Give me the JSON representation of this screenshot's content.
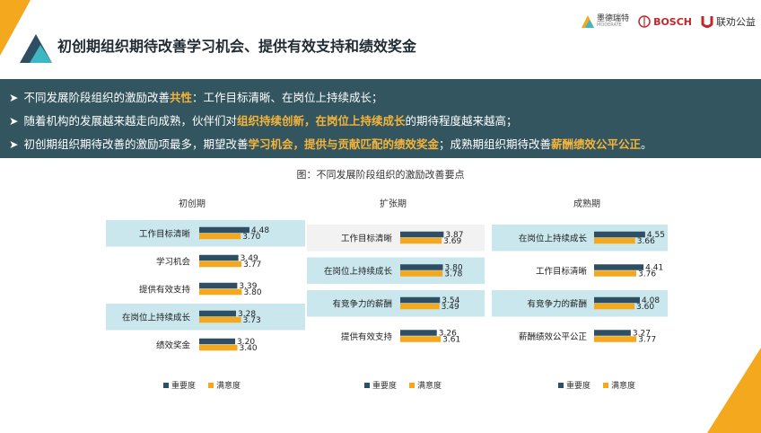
{
  "header": {
    "title": "初创期组织期待改善学习机会、提供有效支持和绩效奖金",
    "logos": [
      {
        "name": "墨德瑞特",
        "sub": "MODERATE"
      },
      {
        "name": "BOSCH"
      },
      {
        "name": "联劝公益"
      }
    ]
  },
  "banner": {
    "lines": [
      [
        {
          "t": "不同发展阶段组织的激励改善"
        },
        {
          "t": "共性",
          "hl": true
        },
        {
          "t": "：工作目标清晰、在岗位上持续成长；"
        }
      ],
      [
        {
          "t": "随着机构的发展越来越走向成熟，伙伴们对"
        },
        {
          "t": "组织持续创新，在岗位上持续成长",
          "hl": true
        },
        {
          "t": "的期待程度越来越高；"
        }
      ],
      [
        {
          "t": "初创期组织期待改善的激励项最多，期望改善"
        },
        {
          "t": "学习机会，提供与贡献匹配的绩效奖金",
          "hl": true
        },
        {
          "t": "；成熟期组织期待改善"
        },
        {
          "t": "薪酬绩效公平公正",
          "hl": true
        },
        {
          "t": "。"
        }
      ]
    ]
  },
  "figure_caption": "图：不同发展阶段组织的激励改善要点",
  "colors": {
    "importance": "#2e4f63",
    "satisfaction": "#f4a81d",
    "highlight": "#bfe3ea",
    "banner": "#33555f",
    "accent": "#f4a81d"
  },
  "chart_data": [
    {
      "type": "bar",
      "orientation": "horizontal",
      "title": "初创期",
      "categories": [
        "工作目标清晰",
        "学习机会",
        "提供有效支持",
        "在岗位上持续成长",
        "绩效奖金"
      ],
      "series": [
        {
          "name": "重要度",
          "values": [
            4.48,
            3.49,
            3.39,
            3.28,
            3.2
          ]
        },
        {
          "name": "满意度",
          "values": [
            3.7,
            3.77,
            3.8,
            3.73,
            3.4
          ]
        }
      ],
      "legend_position": "bottom"
    },
    {
      "type": "bar",
      "orientation": "horizontal",
      "title": "扩张期",
      "categories": [
        "工作目标清晰",
        "在岗位上持续成长",
        "有竞争力的薪酬",
        "提供有效支持"
      ],
      "series": [
        {
          "name": "重要度",
          "values": [
            3.87,
            3.8,
            3.54,
            3.26
          ]
        },
        {
          "name": "满意度",
          "values": [
            3.69,
            3.78,
            3.49,
            3.61
          ]
        }
      ],
      "legend_position": "bottom"
    },
    {
      "type": "bar",
      "orientation": "horizontal",
      "title": "成熟期",
      "categories": [
        "在岗位上持续成长",
        "工作目标清晰",
        "有竞争力的薪酬",
        "薪酬绩效公平公正"
      ],
      "series": [
        {
          "name": "重要度",
          "values": [
            4.55,
            4.41,
            4.08,
            3.27
          ]
        },
        {
          "name": "满意度",
          "values": [
            3.66,
            3.76,
            3.6,
            3.77
          ]
        }
      ],
      "legend_position": "bottom"
    }
  ]
}
